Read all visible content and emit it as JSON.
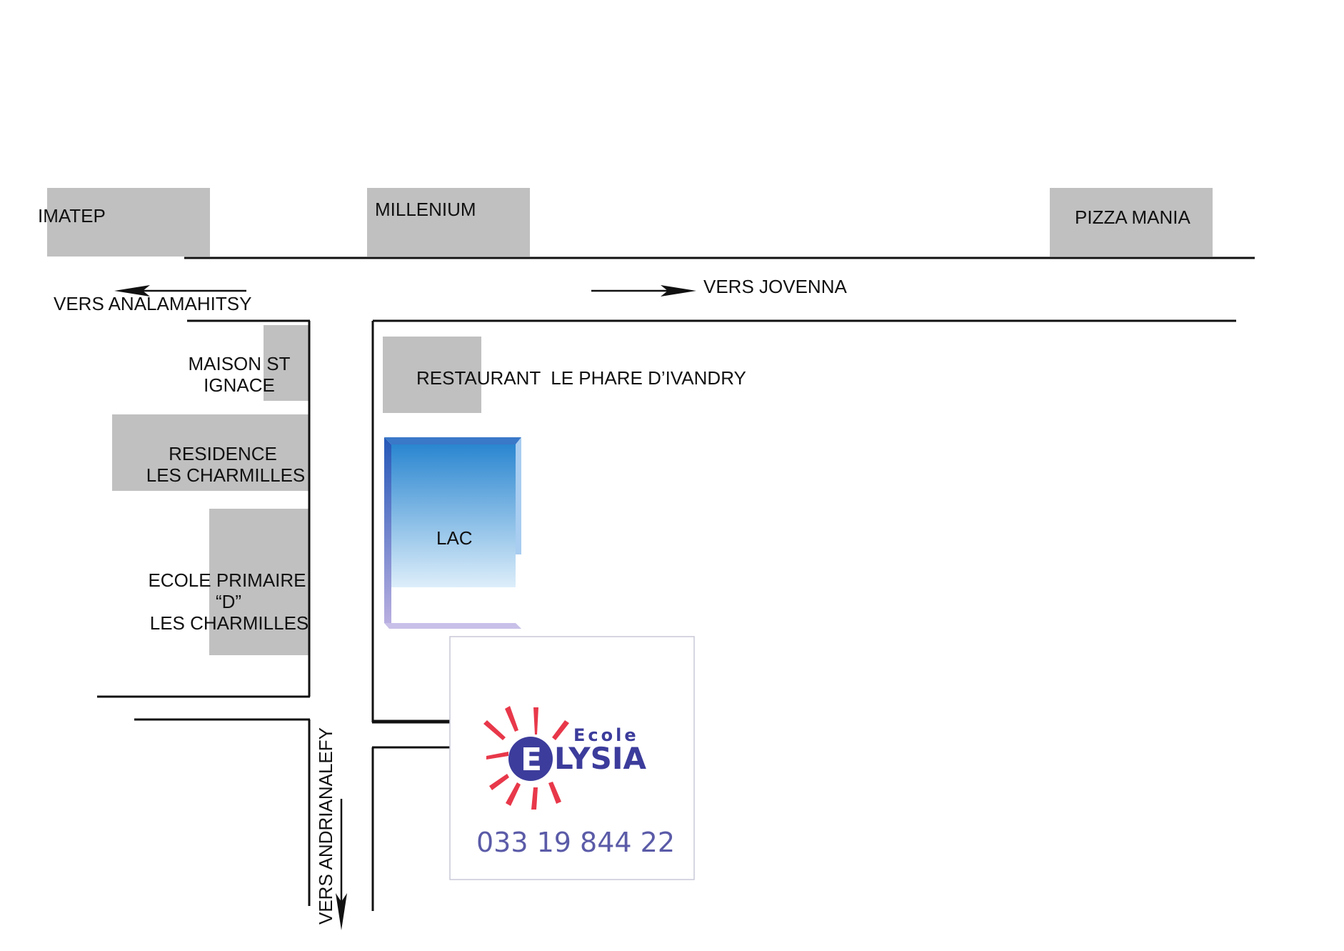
{
  "colors": {
    "building": "#c0c0c0",
    "road": "#111111",
    "lake_top": "#2a86d0",
    "lake_bottom": "#ddeefa",
    "lake_side_left": "#2458b8",
    "lake_side_right": "#a8cdf0",
    "lake_base": "#c8c0e8",
    "logo_sun": "#e8384a",
    "logo_text": "#3c3c9c",
    "logo_phone": "#5b5ba8"
  },
  "buildings": {
    "imatep": "IMATEP",
    "millenium": "MILLENIUM",
    "pizza_mania": "PIZZA MANIA",
    "maison_st_ignace": [
      "MAISON ST",
      "IGNACE"
    ],
    "restaurant": "RESTAURANT  LE PHARE D’IVANDRY",
    "residence": [
      "RESIDENCE",
      "LES CHARMILLES"
    ],
    "ecole_primaire": [
      "ECOLE PRIMAIRE",
      "“D”",
      "LES CHARMILLES"
    ]
  },
  "directions": {
    "west": "VERS ANALAMAHITSY",
    "east": "VERS JOVENNA",
    "south": "VERS ANDRIANALEFY"
  },
  "lake": {
    "label": "LAC"
  },
  "school": {
    "prefix": "Ecole",
    "name_initial": "E",
    "name_rest": "LYSIA",
    "phone": "033  19  844  22"
  }
}
